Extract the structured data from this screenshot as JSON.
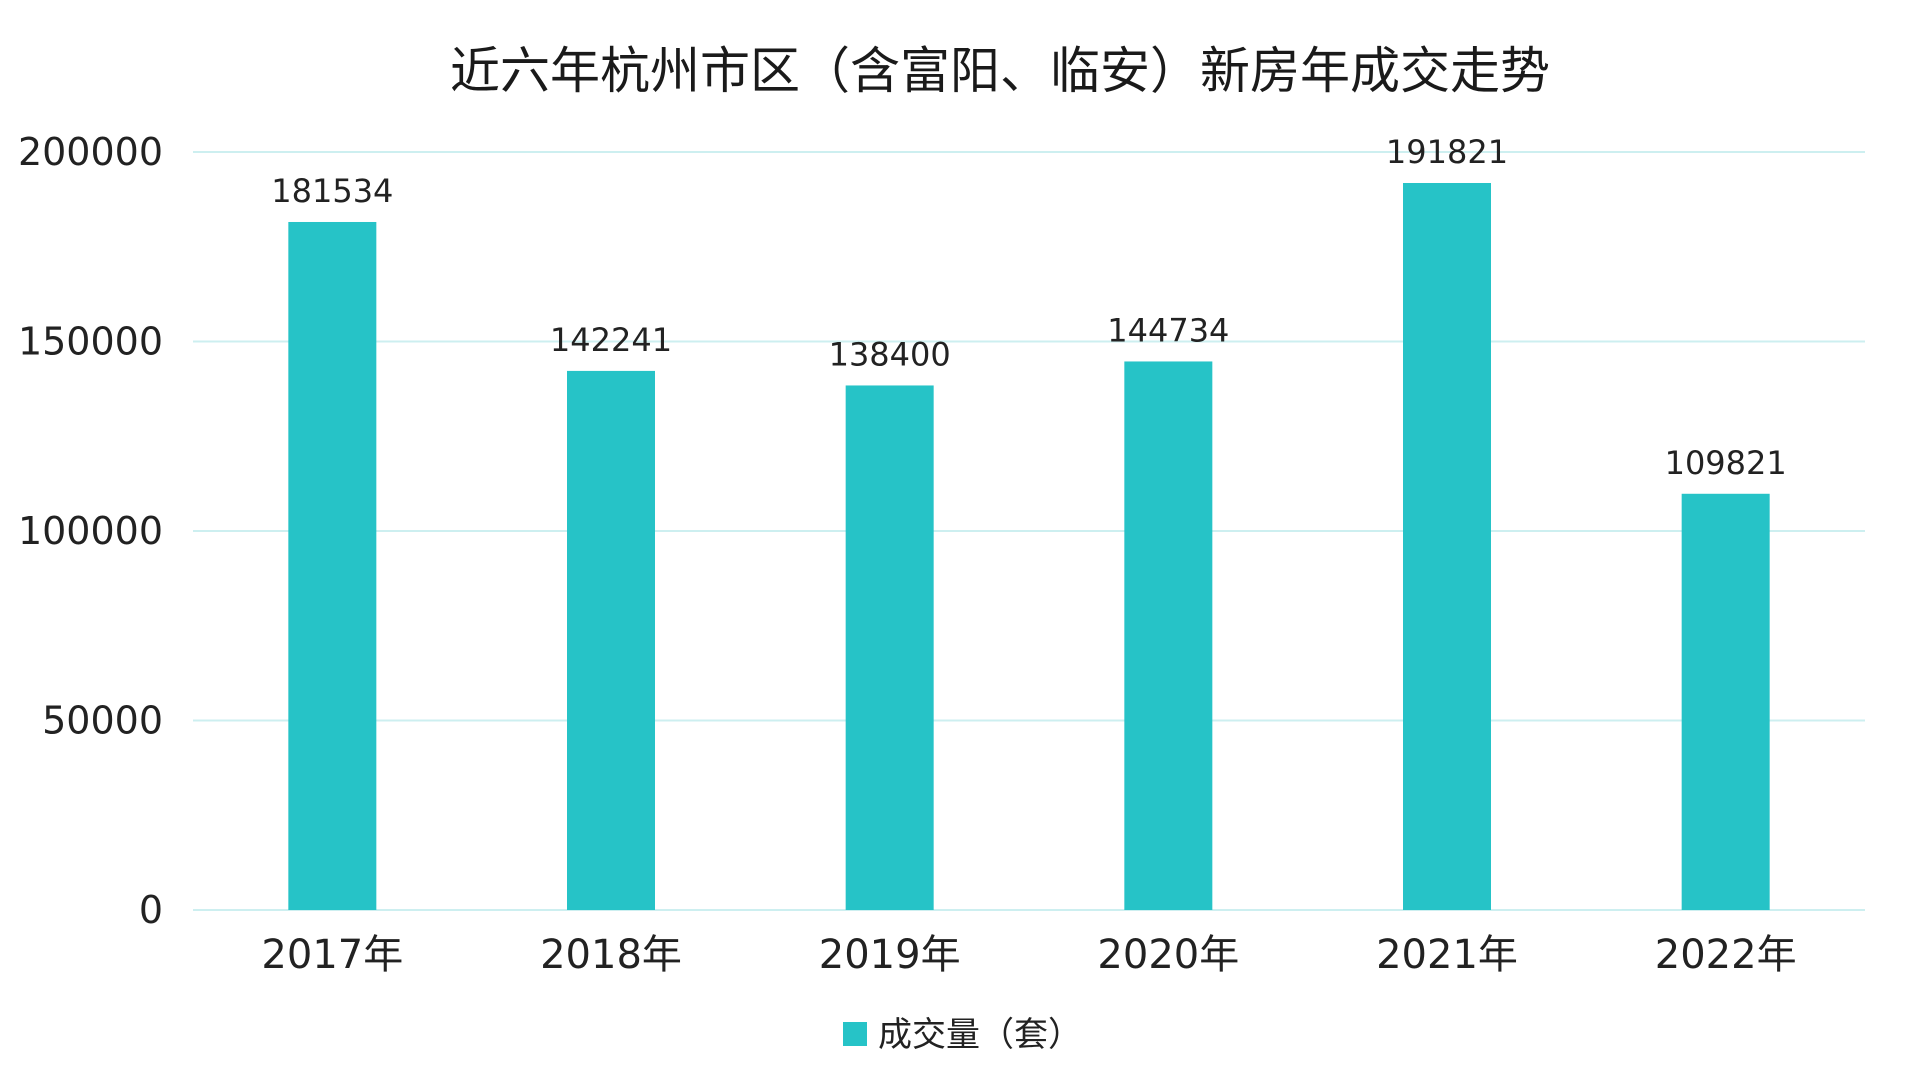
{
  "chart_data": {
    "type": "bar",
    "title": "近六年杭州市区（含富阳、临安）新房年成交走势",
    "categories": [
      "2017年",
      "2018年",
      "2019年",
      "2020年",
      "2021年",
      "2022年"
    ],
    "series": [
      {
        "name": "成交量（套）",
        "values": [
          181534,
          142241,
          138400,
          144734,
          191821,
          109821
        ],
        "color": "#26C3C7"
      }
    ],
    "ylim": [
      0,
      200000
    ],
    "yticks": [
      0,
      50000,
      100000,
      150000,
      200000
    ],
    "ytick_labels": [
      "0",
      "50000",
      "100000",
      "150000",
      "200000"
    ],
    "data_labels": [
      "181534",
      "142241",
      "138400",
      "144734",
      "191821",
      "109821"
    ],
    "xlabel": "",
    "ylabel": "",
    "grid": true,
    "grid_color": "#CDEFF0",
    "legend_position": "bottom-center"
  }
}
